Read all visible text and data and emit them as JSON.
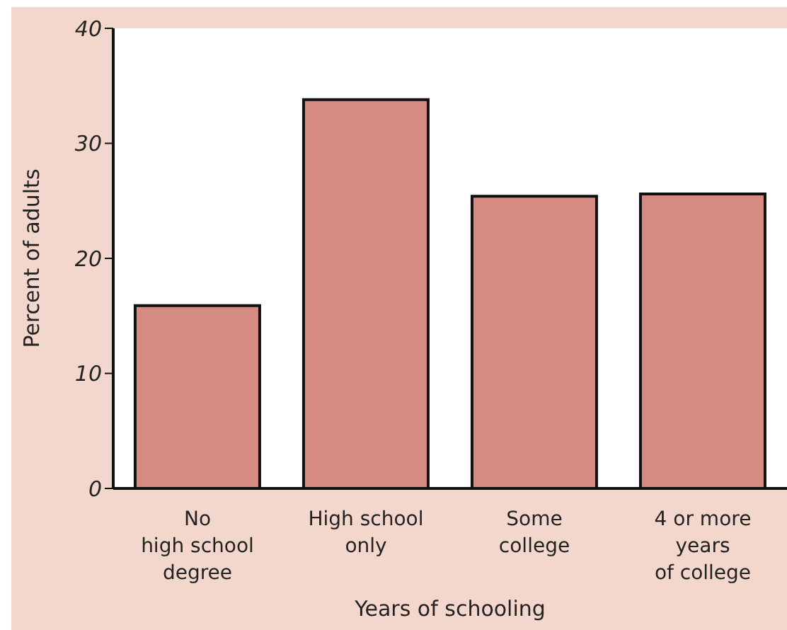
{
  "chart_data": {
    "type": "bar",
    "xlabel": "Years of schooling",
    "ylabel": "Percent of adults",
    "categories": [
      "No\nhigh school\ndegree",
      "High school\nonly",
      "Some\ncollege",
      "4 or more\nyears\nof college"
    ],
    "values": [
      15.9,
      33.8,
      25.4,
      25.6
    ],
    "color": "#d68b82",
    "ylim": [
      0,
      40
    ],
    "yticks": [
      0,
      10,
      20,
      30,
      40
    ]
  }
}
